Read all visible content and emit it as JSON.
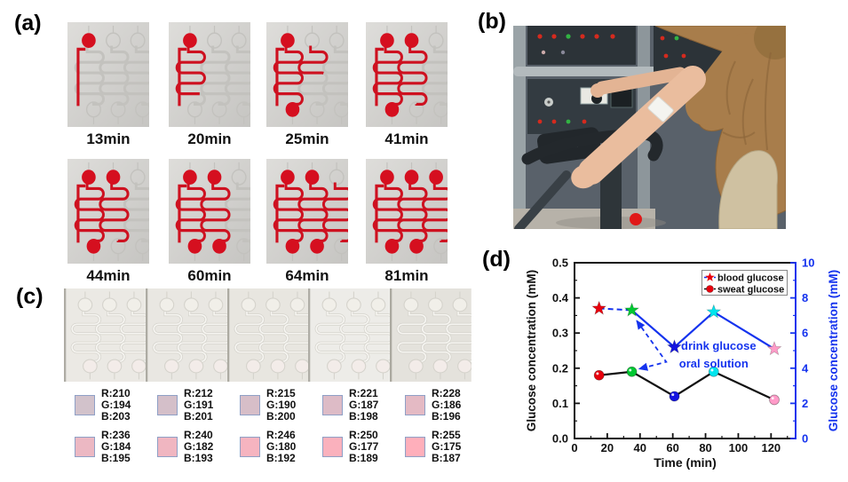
{
  "figure": {
    "panel_a_label": "(a)",
    "panel_b_label": "(b)",
    "panel_c_label": "(c)",
    "panel_d_label": "(d)"
  },
  "panel_a": {
    "dye_color": "#ce1120",
    "devices": [
      {
        "time": "13min",
        "circles": [
          1,
          0,
          0,
          0,
          0,
          0
        ],
        "serpentines": [
          0,
          0,
          0
        ]
      },
      {
        "time": "20min",
        "circles": [
          1,
          0,
          0,
          0,
          0,
          0
        ],
        "serpentines": [
          0.88,
          0,
          0
        ]
      },
      {
        "time": "25min",
        "circles": [
          1,
          0,
          0,
          1,
          0,
          0
        ],
        "serpentines": [
          1,
          0.5,
          0
        ]
      },
      {
        "time": "41min",
        "circles": [
          1,
          1,
          0,
          1,
          0,
          0
        ],
        "serpentines": [
          1,
          1,
          0
        ]
      },
      {
        "time": "44min",
        "circles": [
          1,
          1,
          0,
          1,
          0,
          0
        ],
        "serpentines": [
          1,
          1,
          0
        ]
      },
      {
        "time": "60min",
        "circles": [
          1,
          1,
          0,
          1,
          1,
          0
        ],
        "serpentines": [
          1,
          1,
          0
        ]
      },
      {
        "time": "64min",
        "circles": [
          1,
          1,
          0,
          1,
          1,
          0
        ],
        "serpentines": [
          1,
          1,
          1
        ]
      },
      {
        "time": "81min",
        "circles": [
          1,
          1,
          1,
          1,
          1,
          0
        ],
        "serpentines": [
          1,
          1,
          1
        ]
      }
    ]
  },
  "panel_c": {
    "device_count": 5,
    "swatch_rows": [
      [
        {
          "lines": [
            "R:210",
            "G:194",
            "B:203"
          ]
        },
        {
          "lines": [
            "R:212",
            "G:191",
            "B:201"
          ]
        },
        {
          "lines": [
            "R:215",
            "G:190",
            "B:200"
          ]
        },
        {
          "lines": [
            "R:221",
            "G:187",
            "B:198"
          ]
        },
        {
          "lines": [
            "R:228",
            "G:186",
            "B:196"
          ]
        }
      ],
      [
        {
          "lines": [
            "R:236",
            "G:184",
            "B:195"
          ]
        },
        {
          "lines": [
            "R:240",
            "G:182",
            "B:193"
          ]
        },
        {
          "lines": [
            "R:246",
            "G:180",
            "B:192"
          ]
        },
        {
          "lines": [
            "R:250",
            "G:177",
            "B:189"
          ]
        },
        {
          "lines": [
            "R:255",
            "G:175",
            "B:187"
          ]
        }
      ]
    ]
  },
  "chart_data": {
    "type": "line",
    "xlabel": "Time (min)",
    "ylabel_left": "Glucose concentration (mM)",
    "ylabel_right": "Glucose concentration (mM)",
    "xlim": [
      0,
      135
    ],
    "xticks": [
      0,
      20,
      40,
      60,
      80,
      100,
      120
    ],
    "x_minor_ticks": [
      10,
      30,
      50,
      70,
      90,
      110,
      130
    ],
    "ylim_left": [
      0,
      0.5
    ],
    "yticks_left": [
      "0.0",
      "0.1",
      "0.2",
      "0.3",
      "0.4",
      "0.5"
    ],
    "y_minor_left": [
      0.05,
      0.15,
      0.25,
      0.35,
      0.45
    ],
    "ylim_right": [
      0,
      10
    ],
    "yticks_right": [
      0,
      2,
      4,
      6,
      8,
      10
    ],
    "y_minor_right": [
      1,
      3,
      5,
      7,
      9
    ],
    "axis_color_left": "#111111",
    "axis_color_right": "#1533ee",
    "x": [
      15,
      35,
      61,
      85,
      122
    ],
    "series": [
      {
        "name": "blood glucose",
        "axis": "right",
        "marker": "star",
        "line_color": "#1533ee",
        "first_segment_dashed": true,
        "values": [
          7.4,
          7.3,
          5.2,
          7.2,
          5.1
        ],
        "marker_colors": [
          "#e8000d",
          "#00c832",
          "#1414e0",
          "#00e5ee",
          "#ff9bc8"
        ]
      },
      {
        "name": "sweat glucose",
        "axis": "left",
        "marker": "circle",
        "line_color": "#111111",
        "first_segment_dashed": false,
        "values": [
          0.18,
          0.19,
          0.12,
          0.19,
          0.11
        ],
        "marker_colors": [
          "#e8000d",
          "#00c832",
          "#1414e0",
          "#00e5ee",
          "#ff9bc8"
        ]
      }
    ],
    "legend": {
      "position": "top-right",
      "items": [
        {
          "label": "blood glucose",
          "marker": "star",
          "marker_color": "#e8000d",
          "line_color": "#1533ee"
        },
        {
          "label": "sweat glucose",
          "marker": "circle",
          "marker_color": "#e8000d",
          "line_color": "#111111"
        }
      ]
    },
    "annotations": [
      {
        "text": "drink glucose",
        "x": 88,
        "y_left": 0.262,
        "color": "#1533ee"
      },
      {
        "text": "oral solution",
        "x": 85,
        "y_left": 0.212,
        "color": "#1533ee"
      }
    ],
    "event_arrow": {
      "color": "#1533ee",
      "style": "dashed",
      "arrowhead_at_both_ends": true,
      "points_xy_left": [
        [
          38,
          0.335
        ],
        [
          56,
          0.218
        ],
        [
          39.5,
          0.198
        ]
      ]
    }
  }
}
